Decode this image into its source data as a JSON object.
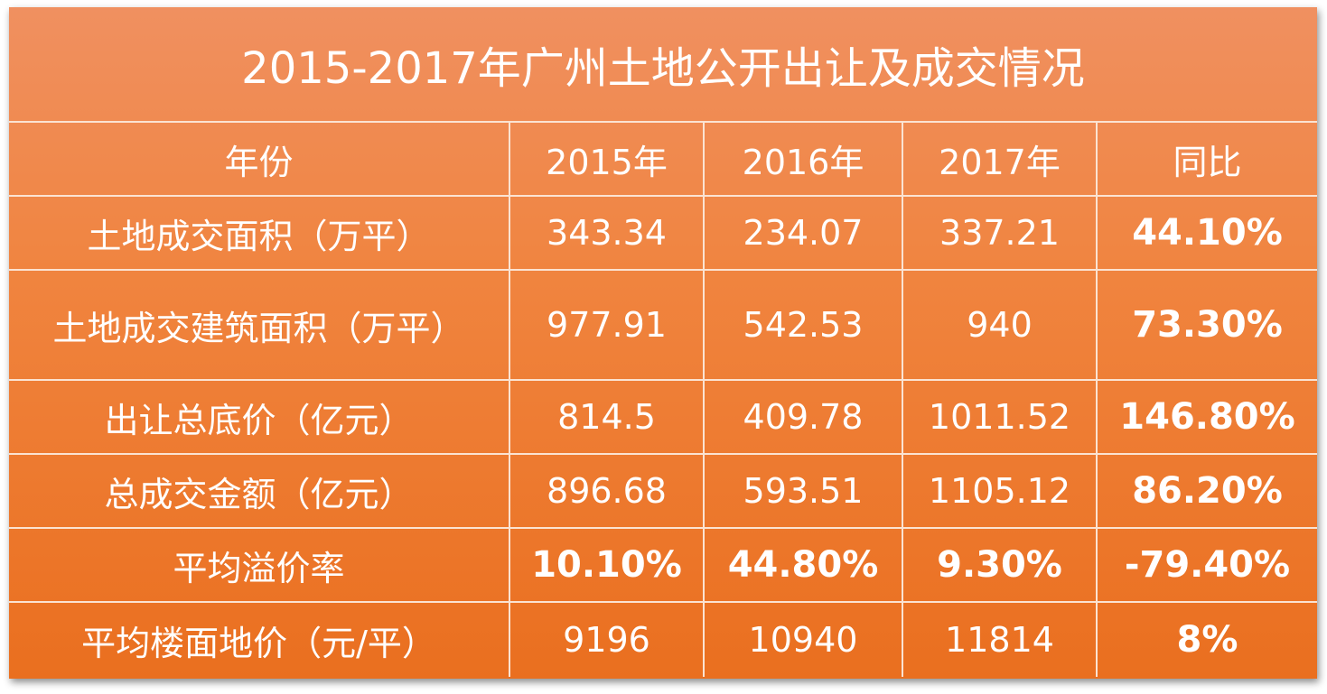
{
  "table": {
    "title": "2015-2017年广州土地公开出让及成交情况",
    "header": [
      "年份",
      "2015年",
      "2016年",
      "2017年",
      "同比"
    ],
    "rows": [
      [
        "土地成交面积（万平）",
        "343.34",
        "234.07",
        "337.21",
        "44.10%"
      ],
      [
        "土地成交建筑面积（万平）",
        "977.91",
        "542.53",
        "940",
        "73.30%"
      ],
      [
        "出让总底价（亿元）",
        "814.5",
        "409.78",
        "1011.52",
        "146.80%"
      ],
      [
        "总成交金额（亿元）",
        "896.68",
        "593.51",
        "1105.12",
        "86.20%"
      ],
      [
        "平均溢价率",
        "10.10%",
        "44.80%",
        "9.30%",
        "-79.40%"
      ],
      [
        "平均楼面地价（元/平）",
        "9196",
        "10940",
        "11814",
        "8%"
      ]
    ]
  }
}
